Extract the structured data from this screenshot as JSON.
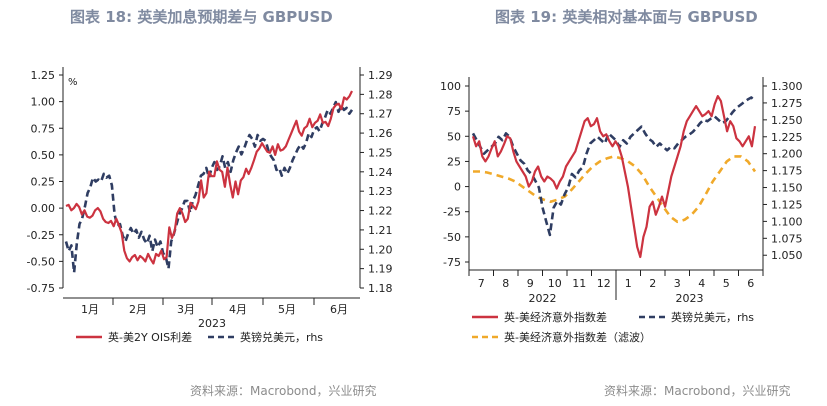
{
  "colors": {
    "red": "#cc3340",
    "navy": "#2f3d62",
    "orange": "#f0a92a",
    "title": "#7f8aa0",
    "source": "#8c8c8c"
  },
  "left": {
    "title": "图表 18: 英美加息预期差与 GBPUSD",
    "source": "资料来源：Macrobond，兴业研究"
  },
  "right": {
    "title": "图表 19:  英美相对基本面与 GBPUSD",
    "source": "资料来源：Macrobond，兴业研究"
  },
  "chart_data": [
    {
      "type": "line",
      "unit_label": "%",
      "ylim": [
        -0.75,
        1.25
      ],
      "y2lim": [
        1.18,
        1.29
      ],
      "yticks": [
        "1.25",
        "1.00",
        "0.75",
        "0.50",
        "0.25",
        "0.00",
        "-0.25",
        "-0.50",
        "-0.75"
      ],
      "y2ticks": [
        "1.29",
        "1.28",
        "1.27",
        "1.26",
        "1.25",
        "1.24",
        "1.23",
        "1.22",
        "1.21",
        "1.20",
        "1.19",
        "1.18"
      ],
      "xticks": [
        "1月",
        "2月",
        "3月",
        "4月",
        "5月",
        "6月"
      ],
      "xyear": "2023",
      "grid": false,
      "legend_position": "bottom",
      "series": [
        {
          "name": "英-美2Y OIS利差",
          "axis": "left",
          "color": "#cc3340",
          "dash": false,
          "values": [
            0.02,
            0.03,
            -0.02,
            0.0,
            0.04,
            0.01,
            -0.06,
            -0.02,
            -0.08,
            -0.09,
            -0.07,
            -0.02,
            0.0,
            -0.03,
            -0.1,
            -0.13,
            -0.14,
            -0.12,
            -0.17,
            -0.1,
            -0.16,
            -0.23,
            -0.4,
            -0.47,
            -0.5,
            -0.46,
            -0.44,
            -0.49,
            -0.45,
            -0.47,
            -0.5,
            -0.43,
            -0.48,
            -0.52,
            -0.43,
            -0.45,
            -0.4,
            -0.48,
            -0.46,
            -0.18,
            -0.28,
            -0.22,
            -0.05,
            0.0,
            -0.05,
            -0.13,
            -0.1,
            0.05,
            0.02,
            -0.01,
            0.06,
            0.26,
            0.1,
            0.14,
            0.34,
            0.3,
            0.3,
            0.44,
            0.36,
            0.34,
            0.2,
            0.38,
            0.22,
            0.1,
            0.25,
            0.13,
            0.26,
            0.29,
            0.37,
            0.32,
            0.38,
            0.45,
            0.53,
            0.56,
            0.61,
            0.57,
            0.53,
            0.52,
            0.58,
            0.5,
            0.6,
            0.54,
            0.55,
            0.58,
            0.64,
            0.7,
            0.76,
            0.82,
            0.72,
            0.68,
            0.75,
            0.77,
            0.84,
            0.76,
            0.8,
            0.82,
            0.88,
            0.8,
            0.81,
            0.77,
            0.84,
            0.94,
            0.97,
            0.98,
            0.93,
            1.04,
            1.02,
            1.05,
            1.1
          ]
        },
        {
          "name": "英镑兑美元，rhs",
          "axis": "right",
          "color": "#2f3d62",
          "dash": true,
          "values": [
            1.204,
            1.199,
            1.202,
            1.188,
            1.203,
            1.213,
            1.216,
            1.222,
            1.229,
            1.232,
            1.237,
            1.235,
            1.236,
            1.235,
            1.239,
            1.237,
            1.238,
            1.233,
            1.218,
            1.212,
            1.213,
            1.207,
            1.204,
            1.208,
            1.211,
            1.208,
            1.21,
            1.206,
            1.209,
            1.205,
            1.203,
            1.207,
            1.199,
            1.205,
            1.201,
            1.204,
            1.198,
            1.196,
            1.19,
            1.204,
            1.208,
            1.213,
            1.218,
            1.221,
            1.225,
            1.225,
            1.219,
            1.225,
            1.228,
            1.233,
            1.238,
            1.239,
            1.242,
            1.237,
            1.242,
            1.245,
            1.241,
            1.243,
            1.248,
            1.242,
            1.245,
            1.24,
            1.246,
            1.25,
            1.253,
            1.249,
            1.252,
            1.256,
            1.259,
            1.257,
            1.253,
            1.259,
            1.256,
            1.257,
            1.256,
            1.251,
            1.248,
            1.246,
            1.241,
            1.242,
            1.238,
            1.242,
            1.239,
            1.242,
            1.246,
            1.249,
            1.252,
            1.254,
            1.252,
            1.255,
            1.26,
            1.258,
            1.262,
            1.263,
            1.261,
            1.265,
            1.268,
            1.272,
            1.27,
            1.273,
            1.276,
            1.271,
            1.274,
            1.272,
            1.273,
            1.27,
            1.272
          ]
        }
      ]
    },
    {
      "type": "line",
      "ylim": [
        -75,
        100
      ],
      "y2lim": [
        1.04,
        1.3
      ],
      "yticks": [
        "100",
        "75",
        "50",
        "25",
        "0",
        "-25",
        "-50",
        "-75"
      ],
      "y2ticks": [
        "1.300",
        "1.275",
        "1.250",
        "1.225",
        "1.200",
        "1.175",
        "1.150",
        "1.125",
        "1.100",
        "1.075",
        "1.050"
      ],
      "xticks": [
        "7",
        "8",
        "9",
        "10",
        "11",
        "12",
        "1",
        "2",
        "3",
        "4",
        "5",
        "6"
      ],
      "xyears": [
        "2022",
        "2023"
      ],
      "grid": false,
      "legend_position": "bottom",
      "series": [
        {
          "name": "英-美经济意外指数差",
          "axis": "left",
          "color": "#cc3340",
          "dash": false,
          "values": [
            50,
            40,
            45,
            30,
            25,
            30,
            38,
            45,
            30,
            35,
            42,
            50,
            48,
            35,
            25,
            20,
            15,
            10,
            0,
            5,
            15,
            20,
            10,
            5,
            10,
            8,
            5,
            -2,
            5,
            10,
            20,
            25,
            30,
            35,
            45,
            55,
            65,
            68,
            60,
            62,
            68,
            55,
            50,
            52,
            45,
            40,
            45,
            40,
            30,
            15,
            0,
            -20,
            -40,
            -60,
            -70,
            -50,
            -40,
            -20,
            -15,
            -28,
            -20,
            -10,
            -20,
            -5,
            10,
            20,
            30,
            40,
            55,
            65,
            70,
            75,
            80,
            75,
            70,
            72,
            75,
            70,
            82,
            90,
            85,
            70,
            55,
            65,
            60,
            48,
            45,
            40,
            45,
            50,
            40,
            60
          ]
        },
        {
          "name": "英镑兑美元，rhs",
          "axis": "right",
          "color": "#2f3d62",
          "dash": true,
          "values": [
            1.23,
            1.22,
            1.21,
            1.2,
            1.205,
            1.21,
            1.215,
            1.225,
            1.22,
            1.23,
            1.225,
            1.21,
            1.2,
            1.19,
            1.185,
            1.175,
            1.17,
            1.16,
            1.15,
            1.12,
            1.1,
            1.08,
            1.12,
            1.13,
            1.125,
            1.14,
            1.15,
            1.17,
            1.165,
            1.175,
            1.18,
            1.2,
            1.215,
            1.22,
            1.225,
            1.22,
            1.215,
            1.23,
            1.225,
            1.22,
            1.21,
            1.22,
            1.215,
            1.225,
            1.23,
            1.235,
            1.24,
            1.23,
            1.222,
            1.218,
            1.21,
            1.215,
            1.21,
            1.205,
            1.21,
            1.208,
            1.215,
            1.22,
            1.225,
            1.228,
            1.232,
            1.238,
            1.245,
            1.25,
            1.248,
            1.252,
            1.255,
            1.25,
            1.245,
            1.248,
            1.255,
            1.262,
            1.268,
            1.272,
            1.276,
            1.28,
            1.283,
            1.278
          ]
        },
        {
          "name": "英-美经济意外指数差（滤波）",
          "axis": "left",
          "color": "#f0a92a",
          "dash": true,
          "values": [
            15,
            15,
            14,
            12,
            10,
            8,
            5,
            0,
            -5,
            -10,
            -13,
            -15,
            -13,
            -10,
            -3,
            5,
            13,
            20,
            25,
            28,
            30,
            28,
            25,
            20,
            12,
            0,
            -10,
            -20,
            -30,
            -35,
            -33,
            -28,
            -20,
            -8,
            5,
            15,
            25,
            30,
            30,
            25,
            15
          ]
        }
      ]
    }
  ]
}
